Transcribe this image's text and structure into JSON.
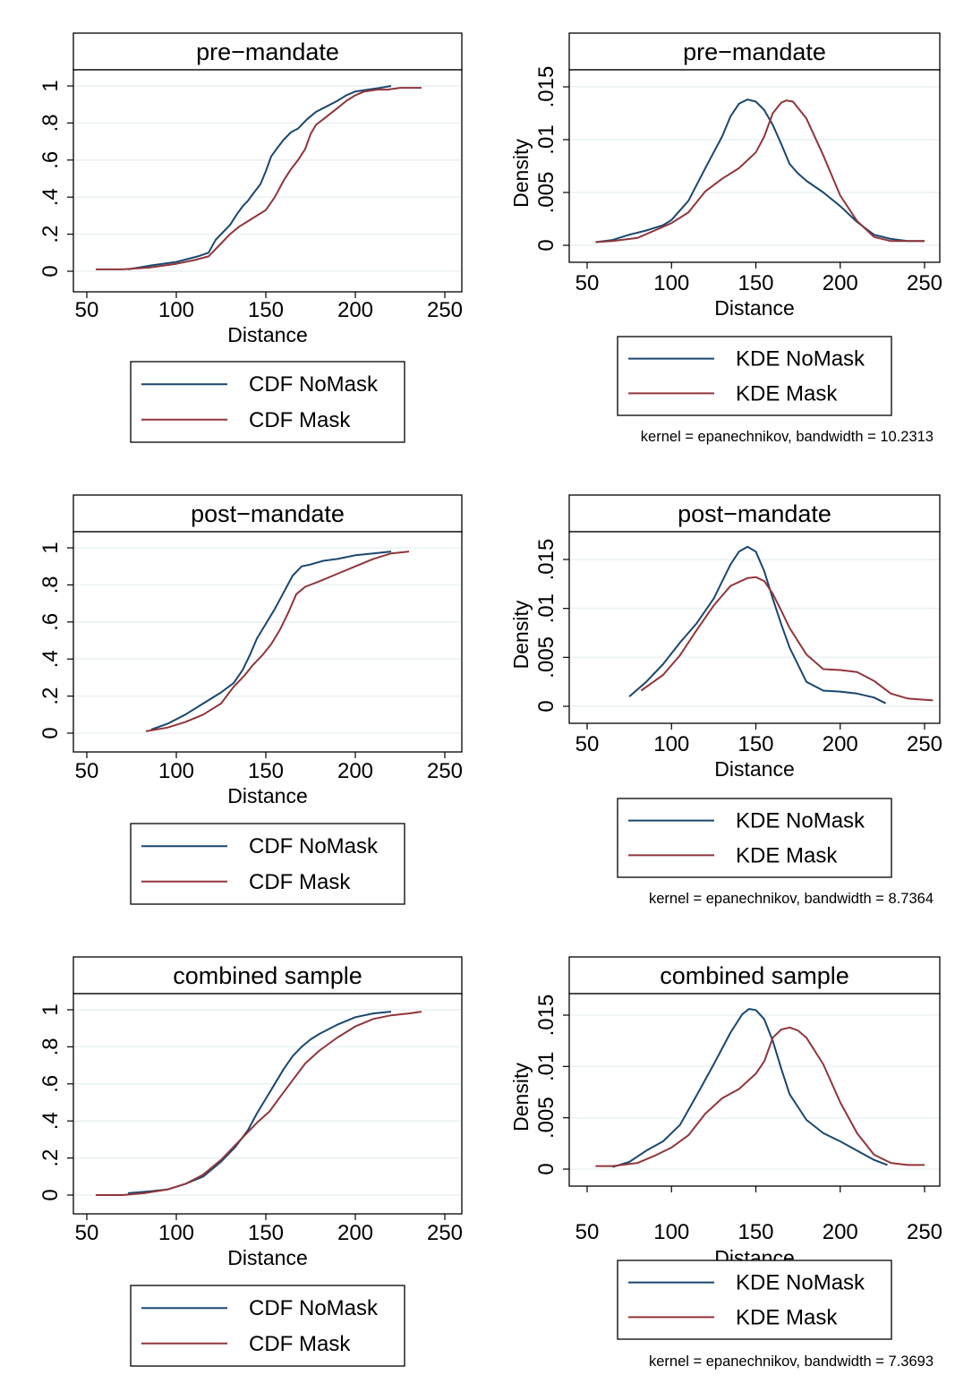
{
  "colors": {
    "nomask": "#1a476f",
    "mask": "#90353b",
    "grid": "#eaf2f3",
    "frame": "#000000"
  },
  "chart_data": [
    {
      "type": "line",
      "kind": "cdf",
      "title": "pre−mandate",
      "xlabel": "Distance",
      "ylabel": "",
      "xlim": [
        46,
        262
      ],
      "ylim": [
        -0.06,
        1.06
      ],
      "xticks": [
        "50",
        "100",
        "150",
        "200",
        "250"
      ],
      "xtick_values": [
        50,
        100,
        150,
        200,
        250
      ],
      "yticks": [
        "0",
        ".2",
        ".4",
        ".6",
        ".8",
        "1"
      ],
      "ytick_values": [
        0,
        0.2,
        0.4,
        0.6,
        0.8,
        1
      ],
      "legend": {
        "position": "bottom",
        "entries": [
          "CDF NoMask",
          "CDF Mask"
        ]
      },
      "series": [
        {
          "name": "CDF NoMask",
          "color": "nomask",
          "x": [
            73,
            85,
            100,
            112,
            118,
            122,
            126,
            130,
            134,
            137,
            140,
            143,
            147,
            150,
            153,
            156,
            160,
            164,
            168,
            173,
            178,
            184,
            190,
            195,
            200,
            207,
            214,
            220
          ],
          "y": [
            0.01,
            0.03,
            0.05,
            0.08,
            0.1,
            0.17,
            0.21,
            0.25,
            0.31,
            0.35,
            0.38,
            0.42,
            0.47,
            0.54,
            0.62,
            0.66,
            0.71,
            0.75,
            0.77,
            0.82,
            0.86,
            0.89,
            0.92,
            0.95,
            0.97,
            0.98,
            0.99,
            1.0
          ]
        },
        {
          "name": "CDF Mask",
          "color": "mask",
          "x": [
            55,
            70,
            85,
            100,
            110,
            118,
            124,
            130,
            135,
            140,
            145,
            150,
            155,
            160,
            164,
            168,
            172,
            175,
            178,
            182,
            186,
            190,
            195,
            200,
            205,
            212,
            218,
            225,
            237
          ],
          "y": [
            0.01,
            0.01,
            0.02,
            0.04,
            0.06,
            0.08,
            0.14,
            0.2,
            0.24,
            0.27,
            0.3,
            0.33,
            0.4,
            0.49,
            0.55,
            0.6,
            0.66,
            0.74,
            0.79,
            0.82,
            0.85,
            0.88,
            0.92,
            0.95,
            0.97,
            0.98,
            0.98,
            0.99,
            0.99
          ]
        }
      ]
    },
    {
      "type": "line",
      "kind": "kde",
      "title": "pre−mandate",
      "xlabel": "Distance",
      "ylabel": "Density",
      "xlim": [
        46,
        262
      ],
      "ylim": [
        -0.0012,
        0.0152
      ],
      "xticks": [
        "50",
        "100",
        "150",
        "200",
        "250"
      ],
      "xtick_values": [
        50,
        100,
        150,
        200,
        250
      ],
      "yticks": [
        "0",
        ".005",
        ".01",
        ".015"
      ],
      "ytick_values": [
        0,
        0.005,
        0.01,
        0.015
      ],
      "legend": {
        "position": "bottom",
        "entries": [
          "KDE NoMask",
          "KDE Mask"
        ]
      },
      "note": "kernel = epanechnikov, bandwidth = 10.2313",
      "series": [
        {
          "name": "KDE NoMask",
          "color": "nomask",
          "x": [
            55,
            65,
            75,
            85,
            95,
            100,
            110,
            120,
            130,
            135,
            140,
            145,
            150,
            155,
            160,
            165,
            170,
            175,
            180,
            190,
            200,
            210,
            220,
            230,
            240,
            250
          ],
          "y": [
            0.0003,
            0.0005,
            0.001,
            0.0014,
            0.0019,
            0.0024,
            0.0042,
            0.0073,
            0.0103,
            0.0122,
            0.0134,
            0.0138,
            0.0136,
            0.0128,
            0.0114,
            0.0096,
            0.0077,
            0.0068,
            0.0061,
            0.005,
            0.0037,
            0.0022,
            0.001,
            0.0006,
            0.0004,
            0.0004
          ]
        },
        {
          "name": "KDE Mask",
          "color": "mask",
          "x": [
            55,
            65,
            80,
            90,
            100,
            110,
            120,
            130,
            140,
            150,
            155,
            160,
            165,
            168,
            172,
            180,
            190,
            200,
            210,
            220,
            230,
            240,
            250
          ],
          "y": [
            0.0003,
            0.0004,
            0.0007,
            0.0014,
            0.0021,
            0.0031,
            0.0051,
            0.0063,
            0.0073,
            0.0088,
            0.0103,
            0.0125,
            0.0135,
            0.0137,
            0.0136,
            0.012,
            0.0085,
            0.0047,
            0.0023,
            0.0008,
            0.0004,
            0.0004,
            0.0004
          ]
        }
      ]
    },
    {
      "type": "line",
      "kind": "cdf",
      "title": "post−mandate",
      "xlabel": "Distance",
      "ylabel": "",
      "xlim": [
        46,
        262
      ],
      "ylim": [
        -0.06,
        1.06
      ],
      "xticks": [
        "50",
        "100",
        "150",
        "200",
        "250"
      ],
      "xtick_values": [
        50,
        100,
        150,
        200,
        250
      ],
      "yticks": [
        "0",
        ".2",
        ".4",
        ".6",
        ".8",
        "1"
      ],
      "ytick_values": [
        0,
        0.2,
        0.4,
        0.6,
        0.8,
        1
      ],
      "legend": {
        "position": "bottom",
        "entries": [
          "CDF NoMask",
          "CDF Mask"
        ]
      },
      "series": [
        {
          "name": "CDF NoMask",
          "color": "nomask",
          "x": [
            86,
            95,
            105,
            115,
            125,
            132,
            137,
            141,
            145,
            150,
            155,
            160,
            165,
            170,
            175,
            182,
            190,
            200,
            210,
            220
          ],
          "y": [
            0.02,
            0.05,
            0.1,
            0.16,
            0.22,
            0.27,
            0.34,
            0.42,
            0.51,
            0.59,
            0.67,
            0.76,
            0.85,
            0.9,
            0.91,
            0.93,
            0.94,
            0.96,
            0.97,
            0.98
          ]
        },
        {
          "name": "CDF Mask",
          "color": "mask",
          "x": [
            83,
            95,
            105,
            115,
            125,
            132,
            138,
            143,
            148,
            153,
            158,
            163,
            167,
            172,
            180,
            190,
            200,
            210,
            220,
            230
          ],
          "y": [
            0.01,
            0.03,
            0.06,
            0.1,
            0.16,
            0.25,
            0.31,
            0.37,
            0.42,
            0.48,
            0.56,
            0.66,
            0.75,
            0.79,
            0.82,
            0.86,
            0.9,
            0.94,
            0.97,
            0.98
          ]
        }
      ]
    },
    {
      "type": "line",
      "kind": "kde",
      "title": "post−mandate",
      "xlabel": "Distance",
      "ylabel": "Density",
      "xlim": [
        40,
        262
      ],
      "ylim": [
        -0.0012,
        0.0172
      ],
      "xticks": [
        "50",
        "100",
        "150",
        "200",
        "250"
      ],
      "xtick_values": [
        50,
        100,
        150,
        200,
        250
      ],
      "yticks": [
        "0",
        ".005",
        ".01",
        ".015"
      ],
      "ytick_values": [
        0,
        0.005,
        0.01,
        0.015
      ],
      "legend": {
        "position": "bottom",
        "entries": [
          "KDE NoMask",
          "KDE Mask"
        ]
      },
      "note": "kernel = epanechnikov, bandwidth = 8.7364",
      "series": [
        {
          "name": "KDE NoMask",
          "color": "nomask",
          "x": [
            75,
            85,
            95,
            105,
            115,
            125,
            135,
            140,
            145,
            150,
            155,
            160,
            165,
            170,
            180,
            190,
            200,
            210,
            220,
            227
          ],
          "y": [
            0.001,
            0.0025,
            0.0043,
            0.0065,
            0.0085,
            0.011,
            0.0145,
            0.0158,
            0.0163,
            0.0158,
            0.0138,
            0.011,
            0.0084,
            0.006,
            0.0025,
            0.0016,
            0.0015,
            0.0013,
            0.0009,
            0.0003
          ]
        },
        {
          "name": "KDE Mask",
          "color": "mask",
          "x": [
            82,
            95,
            105,
            115,
            125,
            135,
            145,
            150,
            155,
            160,
            165,
            170,
            180,
            190,
            200,
            210,
            220,
            230,
            240,
            255
          ],
          "y": [
            0.0016,
            0.0032,
            0.0052,
            0.0078,
            0.0103,
            0.0123,
            0.0131,
            0.0132,
            0.0128,
            0.0115,
            0.0098,
            0.008,
            0.0053,
            0.0038,
            0.0037,
            0.0035,
            0.0026,
            0.0013,
            0.0008,
            0.0006
          ]
        }
      ]
    },
    {
      "type": "line",
      "kind": "cdf",
      "title": "combined sample",
      "xlabel": "Distance",
      "ylabel": "",
      "xlim": [
        46,
        262
      ],
      "ylim": [
        -0.06,
        1.06
      ],
      "xticks": [
        "50",
        "100",
        "150",
        "200",
        "250"
      ],
      "xtick_values": [
        50,
        100,
        150,
        200,
        250
      ],
      "yticks": [
        "0",
        ".2",
        ".4",
        ".6",
        ".8",
        "1"
      ],
      "ytick_values": [
        0,
        0.2,
        0.4,
        0.6,
        0.8,
        1
      ],
      "legend": {
        "position": "bottom",
        "entries": [
          "CDF NoMask",
          "CDF Mask"
        ]
      },
      "series": [
        {
          "name": "CDF NoMask",
          "color": "nomask",
          "x": [
            73,
            85,
            95,
            105,
            115,
            125,
            133,
            140,
            145,
            150,
            155,
            160,
            165,
            170,
            175,
            180,
            190,
            200,
            210,
            220
          ],
          "y": [
            0.01,
            0.02,
            0.03,
            0.06,
            0.1,
            0.18,
            0.26,
            0.35,
            0.44,
            0.52,
            0.6,
            0.68,
            0.75,
            0.8,
            0.84,
            0.87,
            0.92,
            0.96,
            0.98,
            0.99
          ]
        },
        {
          "name": "CDF Mask",
          "color": "mask",
          "x": [
            55,
            70,
            82,
            95,
            105,
            115,
            125,
            135,
            145,
            152,
            158,
            165,
            172,
            180,
            190,
            200,
            210,
            220,
            230,
            237
          ],
          "y": [
            0.0,
            0.0,
            0.01,
            0.03,
            0.06,
            0.11,
            0.19,
            0.29,
            0.39,
            0.45,
            0.53,
            0.62,
            0.71,
            0.78,
            0.85,
            0.91,
            0.95,
            0.97,
            0.98,
            0.99
          ]
        }
      ]
    },
    {
      "type": "line",
      "kind": "kde",
      "title": "combined sample",
      "xlabel": "Distance",
      "ylabel": "Density",
      "xlim": [
        46,
        262
      ],
      "ylim": [
        -0.0012,
        0.0172
      ],
      "xticks": [
        "50",
        "100",
        "150",
        "200",
        "250"
      ],
      "xtick_values": [
        50,
        100,
        150,
        200,
        250
      ],
      "yticks": [
        "0",
        ".005",
        ".01",
        ".015"
      ],
      "ytick_values": [
        0,
        0.005,
        0.01,
        0.015
      ],
      "legend": {
        "position": "bottom",
        "entries": [
          "KDE NoMask",
          "KDE Mask"
        ]
      },
      "note": "kernel = epanechnikov, bandwidth = 7.3693",
      "series": [
        {
          "name": "KDE NoMask",
          "color": "nomask",
          "x": [
            65,
            75,
            85,
            95,
            105,
            115,
            125,
            135,
            142,
            146,
            150,
            155,
            160,
            165,
            170,
            180,
            190,
            200,
            210,
            220,
            228
          ],
          "y": [
            0.0002,
            0.0007,
            0.0018,
            0.0027,
            0.0043,
            0.0072,
            0.0102,
            0.0133,
            0.0151,
            0.0156,
            0.0155,
            0.0146,
            0.0125,
            0.0098,
            0.0073,
            0.0048,
            0.0035,
            0.0027,
            0.0018,
            0.0009,
            0.0004
          ]
        },
        {
          "name": "KDE Mask",
          "color": "mask",
          "x": [
            55,
            65,
            80,
            90,
            100,
            110,
            120,
            130,
            140,
            150,
            155,
            160,
            165,
            170,
            175,
            180,
            190,
            200,
            210,
            220,
            230,
            240,
            250
          ],
          "y": [
            0.0003,
            0.0003,
            0.0006,
            0.0013,
            0.0021,
            0.0033,
            0.0054,
            0.0069,
            0.0078,
            0.0093,
            0.0105,
            0.0128,
            0.0136,
            0.0138,
            0.0135,
            0.0128,
            0.0102,
            0.0065,
            0.0035,
            0.0014,
            0.0006,
            0.0004,
            0.0004
          ]
        }
      ]
    }
  ]
}
